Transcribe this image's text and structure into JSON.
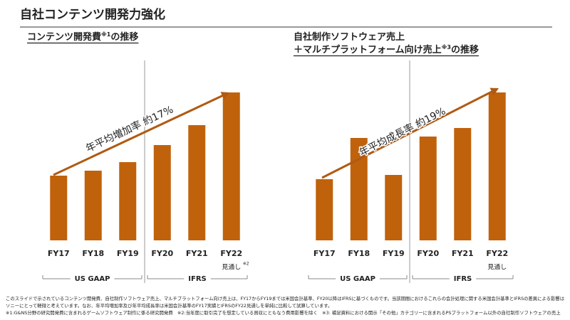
{
  "header": {
    "title": "自社コンテンツ開発力強化"
  },
  "chart_data": [
    {
      "type": "bar",
      "title_lines": [
        "コンテンツ開発費"
      ],
      "title_note": "※1",
      "title_suffix": "の推移",
      "categories": [
        "FY17",
        "FY18",
        "FY19",
        "FY20",
        "FY21",
        "FY22"
      ],
      "values": [
        91,
        98,
        110,
        134,
        162,
        208
      ],
      "color": "#c0620c",
      "ylim": [
        0,
        220
      ],
      "annotation": "年平均増加率 約17%",
      "segments": [
        "US GAAP",
        "IFRS"
      ],
      "forecast_label": "見通し",
      "forecast_note": "※2"
    },
    {
      "type": "bar",
      "title_lines": [
        "自社制作ソフトウェア売上",
        "＋マルチプラットフォーム向け売上"
      ],
      "title_note": "※3",
      "title_suffix": "の推移",
      "categories": [
        "FY17",
        "FY18",
        "FY19",
        "FY20",
        "FY21",
        "FY22"
      ],
      "values": [
        86,
        144,
        92,
        146,
        158,
        208
      ],
      "color": "#c0620c",
      "ylim": [
        0,
        220
      ],
      "annotation": "年平均成長率 約19%",
      "segments": [
        "US GAAP",
        "IFRS"
      ],
      "forecast_label": "見通し"
    }
  ],
  "footnotes": [
    "このスライドで示されているコンテンツ開発費、自社制作ソフトウェア売上、マルチプラットフォーム向け売上は、FY17からFY19までは米国会計基準、FY20以降はIFRSに基づくものです。当該期間におけるこれらの会計処理に関する米国会計基準とIFRSの差異による影響は",
    "ソニーにとって軽微と考えています。なお、年平均増加率及び年平均成長率は米国会計基準のFY17実績とIFRSのFY22見通しを単純に比較して試算しています。",
    "※1:G&NS分野の研究開発費に含まれるゲームソフトウェア制作に係る研究開発費　※2:当年度に取引完了を想定している買収にともなう費用影響を除く　※3: 補足資料における開示「その他」カテゴリーに含まれるPSプラットフォーム以外の自社制作ソフトウェアの売上"
  ]
}
